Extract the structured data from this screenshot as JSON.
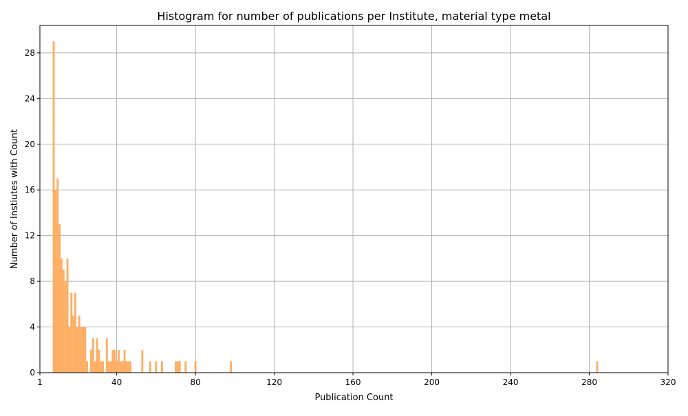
{
  "chart_data": {
    "type": "bar",
    "title": "Histogram for number of publications per Institute, material type metal",
    "xlabel": "Publication Count",
    "ylabel": "Number of Instiutes with Count",
    "xlim": [
      1,
      320
    ],
    "ylim": [
      0,
      30.4
    ],
    "xticks": [
      1,
      40,
      80,
      120,
      160,
      200,
      240,
      280,
      320
    ],
    "yticks": [
      0,
      4,
      8,
      12,
      16,
      20,
      24,
      28
    ],
    "grid": true,
    "bar_color": "#ffaa5a",
    "bar_width": 1,
    "x": [
      8,
      9,
      10,
      11,
      12,
      13,
      14,
      15,
      16,
      17,
      18,
      19,
      20,
      21,
      22,
      23,
      24,
      25,
      26,
      27,
      28,
      29,
      30,
      31,
      32,
      33,
      34,
      35,
      36,
      37,
      38,
      39,
      40,
      41,
      42,
      43,
      44,
      45,
      46,
      47,
      53,
      57,
      60,
      63,
      70,
      71,
      72,
      75,
      80,
      98,
      284
    ],
    "values": [
      29,
      16,
      17,
      13,
      10,
      9,
      8,
      10,
      4,
      7,
      5,
      7,
      4,
      5,
      4,
      4,
      4,
      1,
      0,
      2,
      3,
      1,
      3,
      2,
      1,
      1,
      0,
      3,
      1,
      1,
      2,
      2,
      1,
      2,
      1,
      1,
      2,
      1,
      1,
      1,
      2,
      1,
      1,
      1,
      1,
      1,
      1,
      1,
      1,
      1,
      1
    ]
  }
}
